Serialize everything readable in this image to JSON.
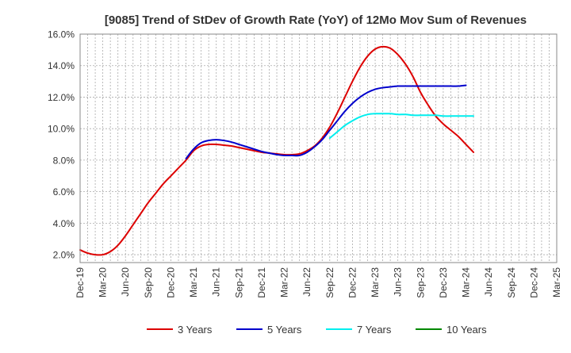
{
  "chart_data": {
    "type": "line",
    "title": "[9085]  Trend of StDev of Growth Rate (YoY) of 12Mo Mov Sum of Revenues",
    "xlabel": "",
    "ylabel": "",
    "ylim": [
      1.5,
      16.0
    ],
    "yticks": [
      2.0,
      4.0,
      6.0,
      8.0,
      10.0,
      12.0,
      14.0,
      16.0
    ],
    "ytick_labels": [
      "2.0%",
      "4.0%",
      "6.0%",
      "8.0%",
      "10.0%",
      "12.0%",
      "14.0%",
      "16.0%"
    ],
    "xtick_labels": [
      "Dec-19",
      "Mar-20",
      "Jun-20",
      "Sep-20",
      "Dec-20",
      "Mar-21",
      "Jun-21",
      "Sep-21",
      "Dec-21",
      "Mar-22",
      "Jun-22",
      "Sep-22",
      "Dec-22",
      "Mar-23",
      "Jun-23",
      "Sep-23",
      "Dec-23",
      "Mar-24",
      "Jun-24",
      "Sep-24",
      "Dec-24",
      "Mar-25"
    ],
    "grid": true,
    "legend_position": "bottom",
    "series": [
      {
        "name": "3 Years",
        "color": "#dd0000",
        "start_index": 0,
        "values": [
          2.3,
          2.1,
          2.0,
          2.0,
          2.2,
          2.6,
          3.2,
          3.9,
          4.6,
          5.3,
          5.9,
          6.5,
          7.0,
          7.5,
          8.0,
          8.6,
          8.9,
          9.0,
          9.0,
          8.95,
          8.9,
          8.8,
          8.7,
          8.6,
          8.5,
          8.45,
          8.4,
          8.35,
          8.35,
          8.4,
          8.6,
          8.9,
          9.4,
          10.1,
          11.0,
          12.0,
          13.0,
          13.9,
          14.6,
          15.05,
          15.2,
          15.1,
          14.7,
          14.1,
          13.3,
          12.3,
          11.5,
          10.8,
          10.3,
          9.9,
          9.5,
          9.0,
          8.5
        ]
      },
      {
        "name": "5 Years",
        "color": "#0000cc",
        "start_index": 14,
        "values": [
          8.1,
          8.7,
          9.1,
          9.25,
          9.3,
          9.25,
          9.15,
          9.0,
          8.85,
          8.7,
          8.55,
          8.45,
          8.35,
          8.3,
          8.3,
          8.3,
          8.5,
          8.85,
          9.3,
          9.9,
          10.5,
          11.1,
          11.6,
          12.0,
          12.3,
          12.5,
          12.6,
          12.65,
          12.7,
          12.7,
          12.7,
          12.7,
          12.7,
          12.7,
          12.7,
          12.7,
          12.7,
          12.75
        ]
      },
      {
        "name": "7 Years",
        "color": "#00eeee",
        "start_index": 33,
        "values": [
          9.4,
          9.8,
          10.2,
          10.5,
          10.75,
          10.9,
          10.95,
          10.95,
          10.95,
          10.9,
          10.9,
          10.85,
          10.85,
          10.85,
          10.85,
          10.8,
          10.8,
          10.8,
          10.8,
          10.8
        ]
      },
      {
        "name": "10 Years",
        "color": "#008800",
        "start_index": 0,
        "values": []
      }
    ]
  }
}
